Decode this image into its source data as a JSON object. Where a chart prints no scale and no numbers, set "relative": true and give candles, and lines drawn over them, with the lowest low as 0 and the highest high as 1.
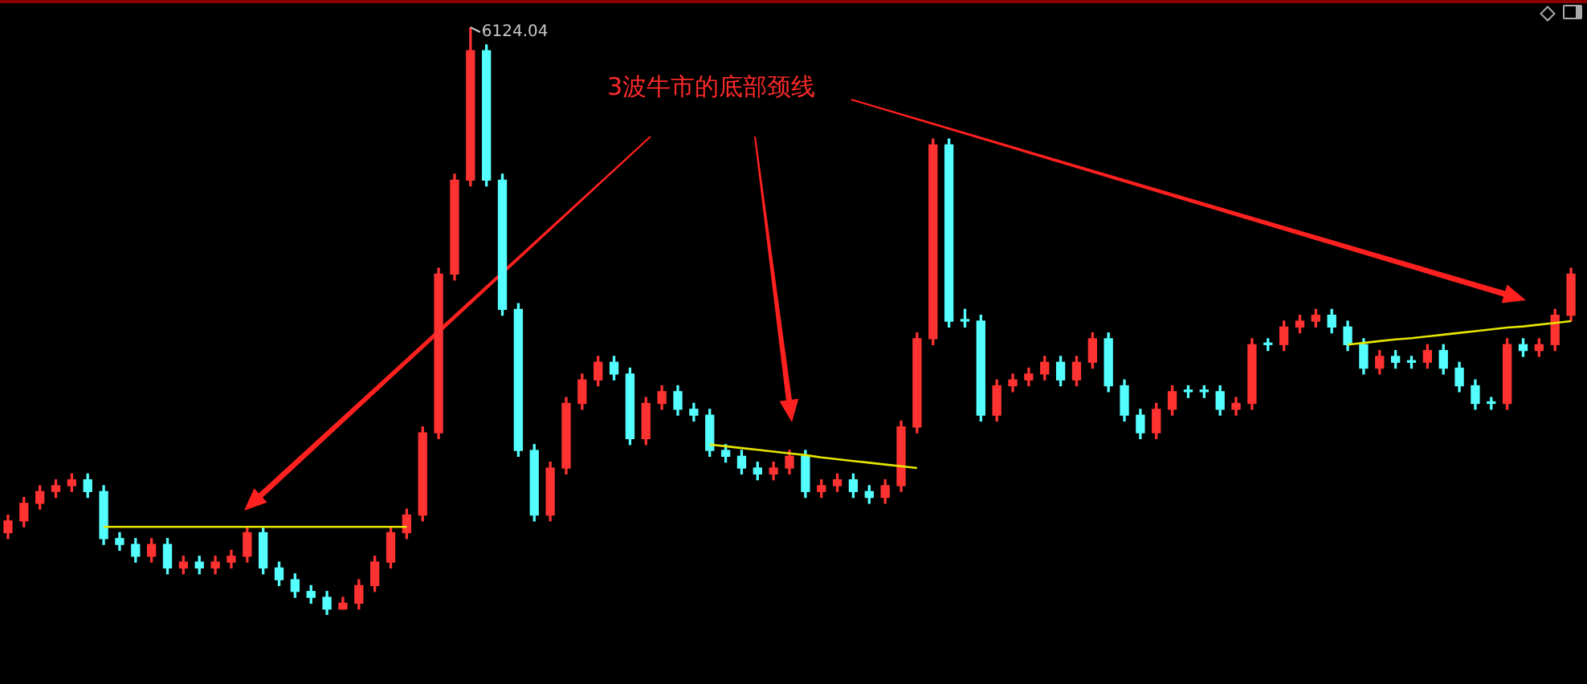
{
  "chart_data": {
    "type": "candlestick",
    "relative": true,
    "legend": false,
    "categories": [
      null,
      null,
      null,
      null,
      null,
      null,
      null,
      null,
      null,
      null,
      null,
      null,
      null,
      null,
      null,
      null,
      null,
      null,
      null,
      null,
      null,
      null,
      null,
      null,
      null,
      null,
      null,
      null,
      null,
      null,
      null,
      null,
      null,
      null,
      null,
      null,
      null,
      null,
      null,
      null,
      null,
      null,
      null,
      null,
      null,
      null,
      null,
      null,
      null,
      null,
      null,
      null,
      null,
      null,
      null,
      null,
      null,
      null,
      null,
      null,
      null,
      null,
      null,
      null,
      null,
      null,
      null,
      null,
      null,
      null,
      null,
      null,
      null,
      null,
      null,
      null,
      null,
      null,
      null,
      null,
      null,
      null,
      null,
      null,
      null,
      null,
      null,
      null,
      null,
      null,
      null,
      null,
      null,
      null,
      null,
      null,
      null,
      null,
      null
    ],
    "ohlc": [
      [
        0.14,
        0.17,
        0.13,
        0.16
      ],
      [
        0.16,
        0.2,
        0.15,
        0.19
      ],
      [
        0.19,
        0.22,
        0.18,
        0.21
      ],
      [
        0.21,
        0.23,
        0.2,
        0.22
      ],
      [
        0.22,
        0.24,
        0.21,
        0.23
      ],
      [
        0.23,
        0.24,
        0.2,
        0.21
      ],
      [
        0.21,
        0.22,
        0.12,
        0.13
      ],
      [
        0.13,
        0.14,
        0.11,
        0.12
      ],
      [
        0.12,
        0.13,
        0.09,
        0.1
      ],
      [
        0.1,
        0.13,
        0.09,
        0.12
      ],
      [
        0.12,
        0.13,
        0.07,
        0.08
      ],
      [
        0.08,
        0.1,
        0.07,
        0.09
      ],
      [
        0.09,
        0.1,
        0.07,
        0.08
      ],
      [
        0.08,
        0.1,
        0.07,
        0.09
      ],
      [
        0.09,
        0.11,
        0.08,
        0.1
      ],
      [
        0.1,
        0.15,
        0.09,
        0.14
      ],
      [
        0.14,
        0.15,
        0.07,
        0.08
      ],
      [
        0.08,
        0.09,
        0.05,
        0.06
      ],
      [
        0.06,
        0.07,
        0.03,
        0.04
      ],
      [
        0.04,
        0.05,
        0.02,
        0.03
      ],
      [
        0.03,
        0.04,
        0,
        0.01
      ],
      [
        0.01,
        0.03,
        0.01,
        0.02
      ],
      [
        0.02,
        0.06,
        0.01,
        0.05
      ],
      [
        0.05,
        0.1,
        0.04,
        0.09
      ],
      [
        0.09,
        0.15,
        0.08,
        0.14
      ],
      [
        0.14,
        0.18,
        0.13,
        0.17
      ],
      [
        0.17,
        0.32,
        0.16,
        0.31
      ],
      [
        0.31,
        0.59,
        0.3,
        0.58
      ],
      [
        0.58,
        0.75,
        0.57,
        0.74
      ],
      [
        0.74,
        1,
        0.73,
        0.96
      ],
      [
        0.96,
        0.97,
        0.73,
        0.74
      ],
      [
        0.74,
        0.75,
        0.51,
        0.52
      ],
      [
        0.52,
        0.53,
        0.27,
        0.28
      ],
      [
        0.28,
        0.29,
        0.16,
        0.17
      ],
      [
        0.17,
        0.26,
        0.16,
        0.25
      ],
      [
        0.25,
        0.37,
        0.24,
        0.36
      ],
      [
        0.36,
        0.41,
        0.35,
        0.4
      ],
      [
        0.4,
        0.44,
        0.39,
        0.43
      ],
      [
        0.43,
        0.44,
        0.4,
        0.41
      ],
      [
        0.41,
        0.42,
        0.29,
        0.3
      ],
      [
        0.3,
        0.37,
        0.29,
        0.36
      ],
      [
        0.36,
        0.39,
        0.35,
        0.38
      ],
      [
        0.38,
        0.39,
        0.34,
        0.35
      ],
      [
        0.35,
        0.36,
        0.33,
        0.34
      ],
      [
        0.34,
        0.35,
        0.27,
        0.28
      ],
      [
        0.28,
        0.29,
        0.26,
        0.27
      ],
      [
        0.27,
        0.28,
        0.24,
        0.25
      ],
      [
        0.25,
        0.26,
        0.23,
        0.24
      ],
      [
        0.24,
        0.26,
        0.23,
        0.25
      ],
      [
        0.25,
        0.28,
        0.24,
        0.27
      ],
      [
        0.27,
        0.28,
        0.2,
        0.21
      ],
      [
        0.21,
        0.23,
        0.2,
        0.22
      ],
      [
        0.22,
        0.24,
        0.21,
        0.23
      ],
      [
        0.23,
        0.24,
        0.2,
        0.21
      ],
      [
        0.21,
        0.22,
        0.19,
        0.2
      ],
      [
        0.2,
        0.23,
        0.19,
        0.22
      ],
      [
        0.22,
        0.33,
        0.21,
        0.32
      ],
      [
        0.32,
        0.48,
        0.31,
        0.47
      ],
      [
        0.47,
        0.81,
        0.46,
        0.8
      ],
      [
        0.8,
        0.81,
        0.49,
        0.5
      ],
      [
        0.5,
        0.52,
        0.49,
        0.5
      ],
      [
        0.5,
        0.51,
        0.33,
        0.34
      ],
      [
        0.34,
        0.4,
        0.33,
        0.39
      ],
      [
        0.39,
        0.41,
        0.38,
        0.4
      ],
      [
        0.4,
        0.42,
        0.39,
        0.41
      ],
      [
        0.41,
        0.44,
        0.4,
        0.43
      ],
      [
        0.43,
        0.44,
        0.39,
        0.4
      ],
      [
        0.4,
        0.44,
        0.39,
        0.43
      ],
      [
        0.43,
        0.48,
        0.42,
        0.47
      ],
      [
        0.47,
        0.48,
        0.38,
        0.39
      ],
      [
        0.39,
        0.4,
        0.33,
        0.34
      ],
      [
        0.34,
        0.35,
        0.3,
        0.31
      ],
      [
        0.31,
        0.36,
        0.3,
        0.35
      ],
      [
        0.35,
        0.39,
        0.34,
        0.38
      ],
      [
        0.38,
        0.39,
        0.37,
        0.38
      ],
      [
        0.38,
        0.39,
        0.37,
        0.38
      ],
      [
        0.38,
        0.39,
        0.34,
        0.35
      ],
      [
        0.35,
        0.37,
        0.34,
        0.36
      ],
      [
        0.36,
        0.47,
        0.35,
        0.46
      ],
      [
        0.46,
        0.47,
        0.45,
        0.46
      ],
      [
        0.46,
        0.5,
        0.45,
        0.49
      ],
      [
        0.49,
        0.51,
        0.48,
        0.5
      ],
      [
        0.5,
        0.52,
        0.49,
        0.51
      ],
      [
        0.51,
        0.52,
        0.48,
        0.49
      ],
      [
        0.49,
        0.5,
        0.45,
        0.46
      ],
      [
        0.46,
        0.47,
        0.41,
        0.42
      ],
      [
        0.42,
        0.45,
        0.41,
        0.44
      ],
      [
        0.44,
        0.45,
        0.42,
        0.43
      ],
      [
        0.43,
        0.44,
        0.42,
        0.43
      ],
      [
        0.43,
        0.46,
        0.42,
        0.45
      ],
      [
        0.45,
        0.46,
        0.41,
        0.42
      ],
      [
        0.42,
        0.43,
        0.38,
        0.39
      ],
      [
        0.39,
        0.4,
        0.35,
        0.36
      ],
      [
        0.36,
        0.37,
        0.35,
        0.36
      ],
      [
        0.36,
        0.47,
        0.35,
        0.46
      ],
      [
        0.46,
        0.47,
        0.44,
        0.45
      ],
      [
        0.45,
        0.47,
        0.44,
        0.46
      ],
      [
        0.46,
        0.52,
        0.45,
        0.51
      ],
      [
        0.51,
        0.59,
        0.5,
        0.58
      ]
    ],
    "colors": [
      "#ff3232",
      "#ff3232",
      "#ff3232",
      "#ff3232",
      "#ff3232",
      "#54ffff",
      "#54ffff",
      "#54ffff",
      "#54ffff",
      "#ff3232",
      "#54ffff",
      "#ff3232",
      "#54ffff",
      "#ff3232",
      "#ff3232",
      "#ff3232",
      "#54ffff",
      "#54ffff",
      "#54ffff",
      "#54ffff",
      "#54ffff",
      "#ff3232",
      "#ff3232",
      "#ff3232",
      "#ff3232",
      "#ff3232",
      "#ff3232",
      "#ff3232",
      "#ff3232",
      "#ff3232",
      "#54ffff",
      "#54ffff",
      "#54ffff",
      "#54ffff",
      "#ff3232",
      "#ff3232",
      "#ff3232",
      "#ff3232",
      "#54ffff",
      "#54ffff",
      "#ff3232",
      "#ff3232",
      "#54ffff",
      "#54ffff",
      "#54ffff",
      "#54ffff",
      "#54ffff",
      "#54ffff",
      "#ff3232",
      "#ff3232",
      "#54ffff",
      "#ff3232",
      "#ff3232",
      "#54ffff",
      "#54ffff",
      "#ff3232",
      "#ff3232",
      "#ff3232",
      "#ff3232",
      "#54ffff",
      "#54ffff",
      "#54ffff",
      "#ff3232",
      "#ff3232",
      "#ff3232",
      "#ff3232",
      "#54ffff",
      "#ff3232",
      "#ff3232",
      "#54ffff",
      "#54ffff",
      "#54ffff",
      "#ff3232",
      "#ff3232",
      "#54ffff",
      "#54ffff",
      "#54ffff",
      "#ff3232",
      "#ff3232",
      "#54ffff",
      "#ff3232",
      "#ff3232",
      "#ff3232",
      "#54ffff",
      "#54ffff",
      "#54ffff",
      "#ff3232",
      "#54ffff",
      "#54ffff",
      "#ff3232",
      "#54ffff",
      "#54ffff",
      "#54ffff",
      "#54ffff",
      "#ff3232",
      "#54ffff",
      "#ff3232",
      "#ff3232",
      "#ff3232"
    ],
    "series": [
      {
        "type": "line",
        "color": "#e6e600",
        "values": [
          null,
          null,
          null,
          null,
          null,
          null,
          0.15,
          0.15,
          0.15,
          0.15,
          0.15,
          0.15,
          0.15,
          0.15,
          0.15,
          0.15,
          0.15,
          0.15,
          0.15,
          0.15,
          0.15,
          0.15,
          0.15,
          0.15,
          0.15,
          0.15,
          null,
          null,
          null,
          null,
          null,
          null,
          null,
          null,
          null,
          null,
          null,
          null,
          null,
          null,
          null,
          null,
          null,
          null,
          null,
          null,
          null,
          null,
          null,
          null,
          null,
          null,
          null,
          null,
          null,
          null,
          null,
          null,
          null,
          null,
          null,
          null,
          null,
          null,
          null,
          null,
          null,
          null,
          null,
          null,
          null,
          null,
          null,
          null,
          null,
          null,
          null,
          null,
          null,
          null,
          null,
          null,
          null,
          null,
          null,
          null,
          null,
          null,
          null,
          null,
          null,
          null,
          null,
          null,
          null,
          null,
          null,
          null,
          null
        ]
      },
      {
        "type": "line",
        "color": "#e6e600",
        "values": [
          null,
          null,
          null,
          null,
          null,
          null,
          null,
          null,
          null,
          null,
          null,
          null,
          null,
          null,
          null,
          null,
          null,
          null,
          null,
          null,
          null,
          null,
          null,
          null,
          null,
          null,
          null,
          null,
          null,
          null,
          null,
          null,
          null,
          null,
          null,
          null,
          null,
          null,
          null,
          null,
          null,
          null,
          null,
          null,
          0.29,
          0.287,
          0.284,
          0.281,
          0.278,
          0.275,
          0.272,
          0.268,
          0.265,
          0.262,
          0.259,
          0.256,
          0.253,
          0.25,
          null,
          null,
          null,
          null,
          null,
          null,
          null,
          null,
          null,
          null,
          null,
          null,
          null,
          null,
          null,
          null,
          null,
          null,
          null,
          null,
          null,
          null,
          null,
          null,
          null,
          null,
          null,
          null,
          null,
          null,
          null,
          null,
          null,
          null,
          null,
          null,
          null,
          null,
          null,
          null,
          null
        ]
      },
      {
        "type": "line",
        "color": "#e6e600",
        "values": [
          null,
          null,
          null,
          null,
          null,
          null,
          null,
          null,
          null,
          null,
          null,
          null,
          null,
          null,
          null,
          null,
          null,
          null,
          null,
          null,
          null,
          null,
          null,
          null,
          null,
          null,
          null,
          null,
          null,
          null,
          null,
          null,
          null,
          null,
          null,
          null,
          null,
          null,
          null,
          null,
          null,
          null,
          null,
          null,
          null,
          null,
          null,
          null,
          null,
          null,
          null,
          null,
          null,
          null,
          null,
          null,
          null,
          null,
          null,
          null,
          null,
          null,
          null,
          null,
          null,
          null,
          null,
          null,
          null,
          null,
          null,
          null,
          null,
          null,
          null,
          null,
          null,
          null,
          null,
          null,
          null,
          null,
          null,
          null,
          0.46,
          0.463,
          0.466,
          0.469,
          0.471,
          0.474,
          0.477,
          0.48,
          0.483,
          0.486,
          0.489,
          0.491,
          0.494,
          0.497,
          0.5
        ]
      }
    ],
    "marker": "none",
    "annotations": [
      "3波牛市的底部颈线",
      "6124.04"
    ]
  }
}
